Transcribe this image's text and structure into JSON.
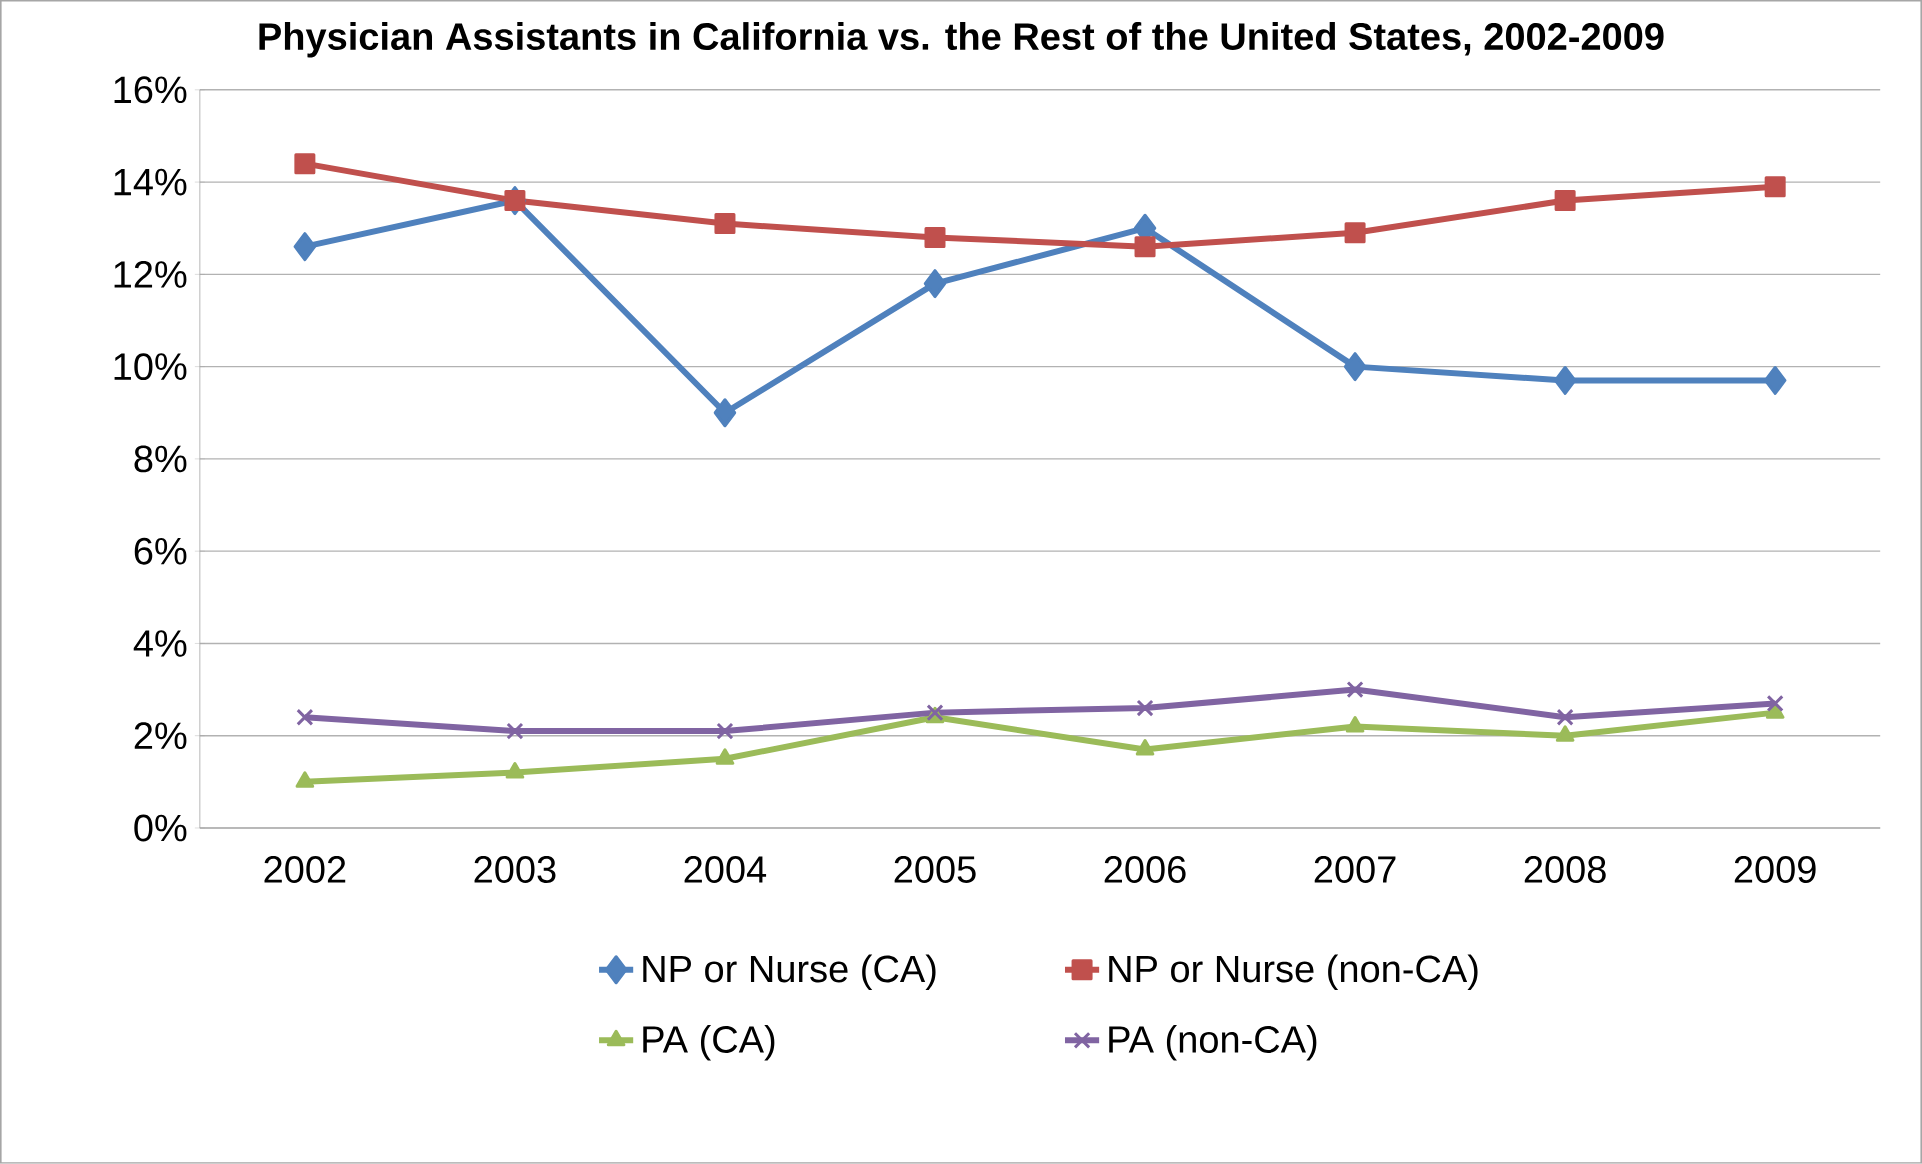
{
  "chart_data": {
    "type": "line",
    "title": "Physician Assistants in California vs. the Rest of the United States, 2002-2009",
    "categories": [
      "2002",
      "2003",
      "2004",
      "2005",
      "2006",
      "2007",
      "2008",
      "2009"
    ],
    "series": [
      {
        "name": "NP or Nurse (CA)",
        "color": "#4f81bd",
        "marker": "diamond",
        "values": [
          12.6,
          13.6,
          9.0,
          11.8,
          13.0,
          10.0,
          9.7,
          9.7
        ]
      },
      {
        "name": "NP or Nurse (non-CA)",
        "color": "#c0504d",
        "marker": "square",
        "values": [
          14.4,
          13.6,
          13.1,
          12.8,
          12.6,
          12.9,
          13.6,
          13.9
        ]
      },
      {
        "name": "PA (CA)",
        "color": "#9bbb59",
        "marker": "triangle",
        "values": [
          1.0,
          1.2,
          1.5,
          2.4,
          1.7,
          2.2,
          2.0,
          2.5
        ]
      },
      {
        "name": "PA (non-CA)",
        "color": "#8064a2",
        "marker": "cross",
        "values": [
          2.4,
          2.1,
          2.1,
          2.5,
          2.6,
          3.0,
          2.4,
          2.7
        ]
      }
    ],
    "ylim": [
      0,
      16
    ],
    "yticks": [
      {
        "value": 0,
        "label": "0%"
      },
      {
        "value": 2,
        "label": "2%"
      },
      {
        "value": 4,
        "label": "4%"
      },
      {
        "value": 6,
        "label": "6%"
      },
      {
        "value": 8,
        "label": "8%"
      },
      {
        "value": 10,
        "label": "10%"
      },
      {
        "value": 12,
        "label": "12%"
      },
      {
        "value": 14,
        "label": "14%"
      },
      {
        "value": 16,
        "label": "16%"
      }
    ],
    "grid": "y",
    "legend": "bottom",
    "line_style": "solid"
  }
}
